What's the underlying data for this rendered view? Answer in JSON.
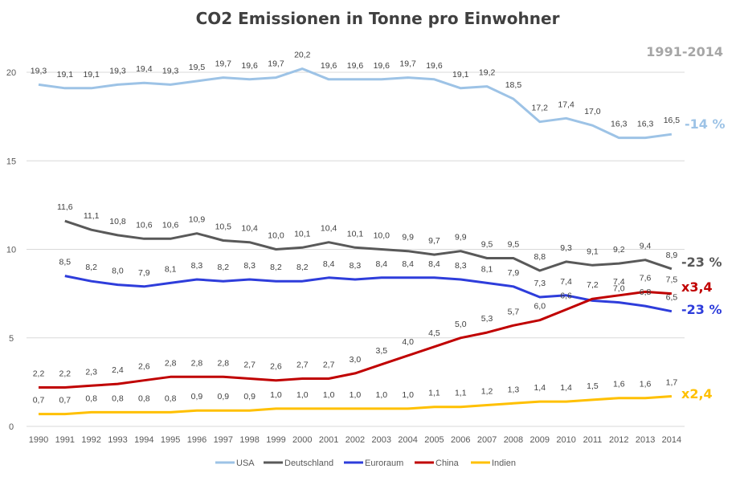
{
  "chart_data": {
    "type": "line",
    "title": "CO2 Emissionen in Tonne pro Einwohner",
    "period_label": "1991-2014",
    "xlabel": "",
    "ylabel": "",
    "ylim": [
      0,
      20
    ],
    "yticks": [
      0,
      5,
      10,
      15,
      20
    ],
    "grid": true,
    "legend_position": "bottom",
    "x": [
      "1990",
      "1991",
      "1992",
      "1993",
      "1994",
      "1995",
      "1996",
      "1997",
      "1998",
      "1999",
      "2000",
      "2001",
      "2002",
      "2003",
      "2004",
      "2005",
      "2006",
      "2007",
      "2008",
      "2009",
      "2010",
      "2011",
      "2012",
      "2013",
      "2014"
    ],
    "series": [
      {
        "name": "USA",
        "color": "#9dc3e6",
        "values": [
          19.3,
          19.1,
          19.1,
          19.3,
          19.4,
          19.3,
          19.5,
          19.7,
          19.6,
          19.7,
          20.2,
          19.6,
          19.6,
          19.6,
          19.7,
          19.6,
          19.1,
          19.2,
          18.5,
          17.2,
          17.4,
          17.0,
          16.3,
          16.3,
          16.5
        ],
        "labels": [
          "19,3",
          "19,1",
          "19,1",
          "19,3",
          "19,4",
          "19,3",
          "19,5",
          "19,7",
          "19,6",
          "19,7",
          "20,2",
          "19,6",
          "19,6",
          "19,6",
          "19,7",
          "19,6",
          "19,1",
          "19,2",
          "18,5",
          "17,2",
          "17,4",
          "17,0",
          "16,3",
          "16,3",
          "16,5"
        ],
        "annotation": "-14 %"
      },
      {
        "name": "Deutschland",
        "color": "#595959",
        "values": [
          null,
          11.6,
          11.1,
          10.8,
          10.6,
          10.6,
          10.9,
          10.5,
          10.4,
          10.0,
          10.1,
          10.4,
          10.1,
          10.0,
          9.9,
          9.7,
          9.9,
          9.5,
          9.5,
          8.8,
          9.3,
          9.1,
          9.2,
          9.4,
          8.9
        ],
        "labels": [
          null,
          "11,6",
          "11,1",
          "10,8",
          "10,6",
          "10,6",
          "10,9",
          "10,5",
          "10,4",
          "10,0",
          "10,1",
          "10,4",
          "10,1",
          "10,0",
          "9,9",
          "9,7",
          "9,9",
          "9,5",
          "9,5",
          "8,8",
          "9,3",
          "9,1",
          "9,2",
          "9,4",
          "8,9"
        ],
        "annotation": "-23 %"
      },
      {
        "name": "Euroraum",
        "color": "#2e3ddb",
        "values": [
          null,
          8.5,
          8.2,
          8.0,
          7.9,
          8.1,
          8.3,
          8.2,
          8.3,
          8.2,
          8.2,
          8.4,
          8.3,
          8.4,
          8.4,
          8.4,
          8.3,
          8.1,
          7.9,
          7.3,
          7.4,
          7.1,
          7.0,
          6.8,
          6.5
        ],
        "labels": [
          null,
          "8,5",
          "8,2",
          "8,0",
          "7,9",
          "8,1",
          "8,3",
          "8,2",
          "8,3",
          "8,2",
          "8,2",
          "8,4",
          "8,3",
          "8,4",
          "8,4",
          "8,4",
          "8,3",
          "8,1",
          "7,9",
          "7,3",
          "7,4",
          null,
          "7,0",
          "6,8",
          "6,5"
        ],
        "annotation": "-23 %"
      },
      {
        "name": "China",
        "color": "#c00000",
        "values": [
          2.2,
          2.2,
          2.3,
          2.4,
          2.6,
          2.8,
          2.8,
          2.8,
          2.7,
          2.6,
          2.7,
          2.7,
          3.0,
          3.5,
          4.0,
          4.5,
          5.0,
          5.3,
          5.7,
          6.0,
          6.6,
          7.2,
          7.4,
          7.6,
          7.5
        ],
        "labels": [
          "2,2",
          "2,2",
          "2,3",
          "2,4",
          "2,6",
          "2,8",
          "2,8",
          "2,8",
          "2,7",
          "2,6",
          "2,7",
          "2,7",
          "3,0",
          "3,5",
          "4,0",
          "4,5",
          "5,0",
          "5,3",
          "5,7",
          "6,0",
          "6,6",
          "7,2",
          "7,4",
          "7,6",
          "7,5"
        ],
        "annotation": "x3,4"
      },
      {
        "name": "Indien",
        "color": "#ffc000",
        "values": [
          0.7,
          0.7,
          0.8,
          0.8,
          0.8,
          0.8,
          0.9,
          0.9,
          0.9,
          1.0,
          1.0,
          1.0,
          1.0,
          1.0,
          1.0,
          1.1,
          1.1,
          1.2,
          1.3,
          1.4,
          1.4,
          1.5,
          1.6,
          1.6,
          1.7
        ],
        "labels": [
          "0,7",
          "0,7",
          "0,8",
          "0,8",
          "0,8",
          "0,8",
          "0,9",
          "0,9",
          "0,9",
          "1,0",
          "1,0",
          "1,0",
          "1,0",
          "1,0",
          "1,0",
          "1,1",
          "1,1",
          "1,2",
          "1,3",
          "1,4",
          "1,4",
          "1,5",
          "1,6",
          "1,6",
          "1,7"
        ],
        "annotation": "x2,4"
      }
    ]
  }
}
